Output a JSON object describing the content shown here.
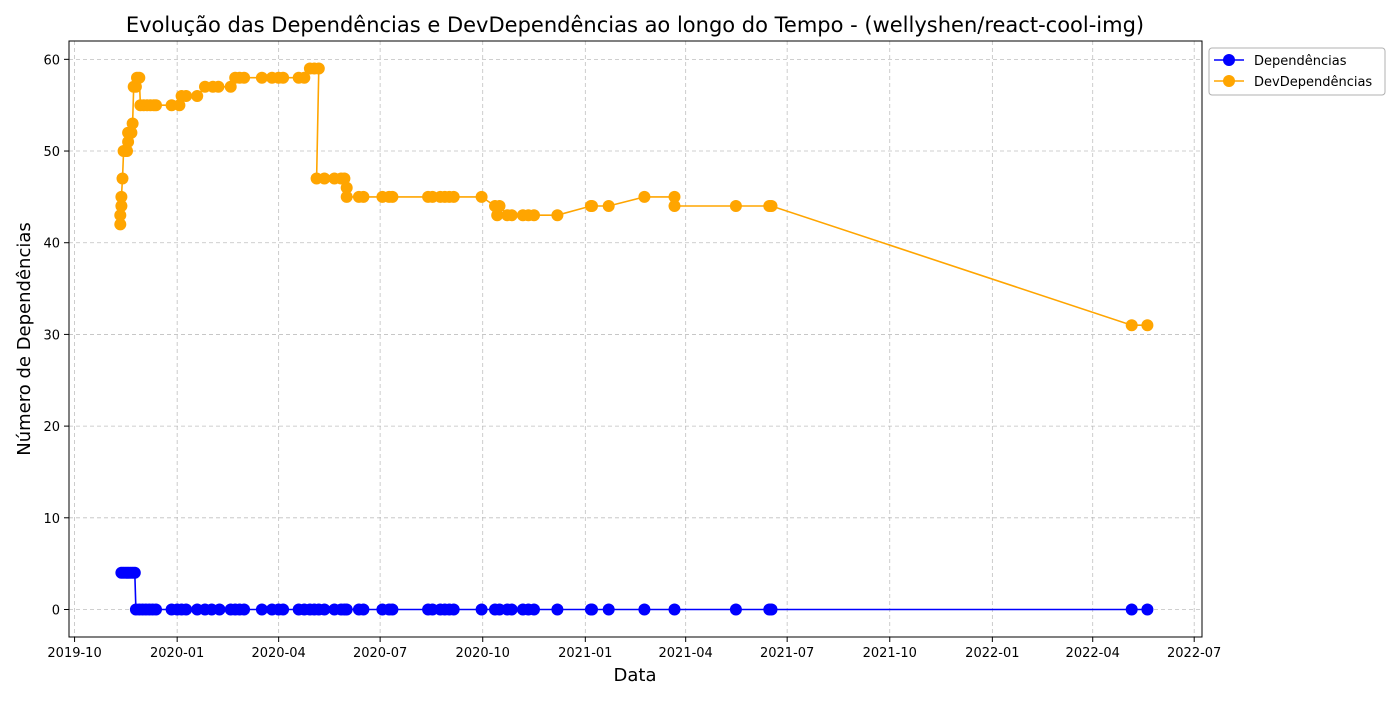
{
  "chart_data": {
    "type": "line",
    "title": "Evolução das Dependências e DevDependências ao longo do Tempo - (wellyshen/react-cool-img)",
    "xlabel": "Data",
    "ylabel": "Número de Dependências",
    "xlim": [
      "2019-09-26",
      "2022-07-08"
    ],
    "ylim": [
      -3,
      62
    ],
    "grid": true,
    "legend_position": "top-right, outside plot",
    "x_ticks": [
      "2019-10-01",
      "2020-01-01",
      "2020-04-01",
      "2020-07-01",
      "2020-10-01",
      "2021-01-01",
      "2021-04-01",
      "2021-07-01",
      "2021-10-01",
      "2022-01-01",
      "2022-04-01",
      "2022-07-01"
    ],
    "x_tick_labels": [
      "2019-10",
      "2020-01",
      "2020-04",
      "2020-07",
      "2020-10",
      "2021-01",
      "2021-04",
      "2021-07",
      "2021-10",
      "2022-01",
      "2022-04",
      "2022-07"
    ],
    "y_ticks": [
      0,
      10,
      20,
      30,
      40,
      50,
      60
    ],
    "y_tick_labels": [
      "0",
      "10",
      "20",
      "30",
      "40",
      "50",
      "60"
    ],
    "series": [
      {
        "name": "Dependências",
        "color": "#0000ff",
        "marker": "circle",
        "points": [
          [
            "2019-11-12",
            4
          ],
          [
            "2019-11-14",
            4
          ],
          [
            "2019-11-16",
            4
          ],
          [
            "2019-11-18",
            4
          ],
          [
            "2019-11-20",
            4
          ],
          [
            "2019-11-22",
            4
          ],
          [
            "2019-11-24",
            4
          ],
          [
            "2019-11-25",
            0
          ],
          [
            "2019-11-28",
            0
          ],
          [
            "2019-12-01",
            0
          ],
          [
            "2019-12-04",
            0
          ],
          [
            "2019-12-07",
            0
          ],
          [
            "2019-12-10",
            0
          ],
          [
            "2019-12-13",
            0
          ],
          [
            "2019-12-27",
            0
          ],
          [
            "2020-01-01",
            0
          ],
          [
            "2020-01-05",
            0
          ],
          [
            "2020-01-09",
            0
          ],
          [
            "2020-01-19",
            0
          ],
          [
            "2020-01-26",
            0
          ],
          [
            "2020-02-01",
            0
          ],
          [
            "2020-02-08",
            0
          ],
          [
            "2020-02-18",
            0
          ],
          [
            "2020-02-22",
            0
          ],
          [
            "2020-02-26",
            0
          ],
          [
            "2020-03-01",
            0
          ],
          [
            "2020-03-17",
            0
          ],
          [
            "2020-03-26",
            0
          ],
          [
            "2020-04-01",
            0
          ],
          [
            "2020-04-05",
            0
          ],
          [
            "2020-04-19",
            0
          ],
          [
            "2020-04-24",
            0
          ],
          [
            "2020-04-29",
            0
          ],
          [
            "2020-05-03",
            0
          ],
          [
            "2020-05-07",
            0
          ],
          [
            "2020-05-12",
            0
          ],
          [
            "2020-05-21",
            0
          ],
          [
            "2020-05-27",
            0
          ],
          [
            "2020-05-30",
            0
          ],
          [
            "2020-06-01",
            0
          ],
          [
            "2020-06-12",
            0
          ],
          [
            "2020-06-16",
            0
          ],
          [
            "2020-07-03",
            0
          ],
          [
            "2020-07-09",
            0
          ],
          [
            "2020-07-12",
            0
          ],
          [
            "2020-08-13",
            0
          ],
          [
            "2020-08-17",
            0
          ],
          [
            "2020-08-24",
            0
          ],
          [
            "2020-08-28",
            0
          ],
          [
            "2020-09-01",
            0
          ],
          [
            "2020-09-05",
            0
          ],
          [
            "2020-09-30",
            0
          ],
          [
            "2020-10-12",
            0
          ],
          [
            "2020-10-16",
            0
          ],
          [
            "2020-10-23",
            0
          ],
          [
            "2020-10-27",
            0
          ],
          [
            "2020-11-06",
            0
          ],
          [
            "2020-11-11",
            0
          ],
          [
            "2020-11-16",
            0
          ],
          [
            "2020-12-07",
            0
          ],
          [
            "2021-01-06",
            0
          ],
          [
            "2021-01-07",
            0
          ],
          [
            "2021-01-22",
            0
          ],
          [
            "2021-02-23",
            0
          ],
          [
            "2021-03-22",
            0
          ],
          [
            "2021-05-16",
            0
          ],
          [
            "2021-06-15",
            0
          ],
          [
            "2021-06-17",
            0
          ],
          [
            "2022-05-06",
            0
          ],
          [
            "2022-05-20",
            0
          ]
        ]
      },
      {
        "name": "DevDependências",
        "color": "#ffa500",
        "marker": "circle",
        "points": [
          [
            "2019-11-11",
            42
          ],
          [
            "2019-11-11",
            43
          ],
          [
            "2019-11-12",
            44
          ],
          [
            "2019-11-12",
            45
          ],
          [
            "2019-11-13",
            47
          ],
          [
            "2019-11-14",
            50
          ],
          [
            "2019-11-16",
            50
          ],
          [
            "2019-11-17",
            50
          ],
          [
            "2019-11-18",
            51
          ],
          [
            "2019-11-18",
            52
          ],
          [
            "2019-11-21",
            52
          ],
          [
            "2019-11-22",
            53
          ],
          [
            "2019-11-23",
            57
          ],
          [
            "2019-11-25",
            57
          ],
          [
            "2019-11-26",
            58
          ],
          [
            "2019-11-28",
            58
          ],
          [
            "2019-11-29",
            55
          ],
          [
            "2019-12-02",
            55
          ],
          [
            "2019-12-05",
            55
          ],
          [
            "2019-12-08",
            55
          ],
          [
            "2019-12-11",
            55
          ],
          [
            "2019-12-13",
            55
          ],
          [
            "2019-12-27",
            55
          ],
          [
            "2020-01-03",
            55
          ],
          [
            "2020-01-05",
            56
          ],
          [
            "2020-01-09",
            56
          ],
          [
            "2020-01-19",
            56
          ],
          [
            "2020-01-26",
            57
          ],
          [
            "2020-02-02",
            57
          ],
          [
            "2020-02-07",
            57
          ],
          [
            "2020-02-18",
            57
          ],
          [
            "2020-02-22",
            58
          ],
          [
            "2020-02-26",
            58
          ],
          [
            "2020-03-01",
            58
          ],
          [
            "2020-03-17",
            58
          ],
          [
            "2020-03-26",
            58
          ],
          [
            "2020-04-01",
            58
          ],
          [
            "2020-04-05",
            58
          ],
          [
            "2020-04-19",
            58
          ],
          [
            "2020-04-24",
            58
          ],
          [
            "2020-04-29",
            59
          ],
          [
            "2020-05-03",
            59
          ],
          [
            "2020-05-07",
            59
          ],
          [
            "2020-05-05",
            47
          ],
          [
            "2020-05-12",
            47
          ],
          [
            "2020-05-21",
            47
          ],
          [
            "2020-05-27",
            47
          ],
          [
            "2020-05-30",
            47
          ],
          [
            "2020-06-01",
            46
          ],
          [
            "2020-06-01",
            45
          ],
          [
            "2020-06-12",
            45
          ],
          [
            "2020-06-16",
            45
          ],
          [
            "2020-07-03",
            45
          ],
          [
            "2020-07-09",
            45
          ],
          [
            "2020-07-12",
            45
          ],
          [
            "2020-08-13",
            45
          ],
          [
            "2020-08-17",
            45
          ],
          [
            "2020-08-24",
            45
          ],
          [
            "2020-08-28",
            45
          ],
          [
            "2020-09-01",
            45
          ],
          [
            "2020-09-05",
            45
          ],
          [
            "2020-09-30",
            45
          ],
          [
            "2020-10-12",
            44
          ],
          [
            "2020-10-14",
            43
          ],
          [
            "2020-10-16",
            44
          ],
          [
            "2020-10-23",
            43
          ],
          [
            "2020-10-27",
            43
          ],
          [
            "2020-11-06",
            43
          ],
          [
            "2020-11-11",
            43
          ],
          [
            "2020-11-16",
            43
          ],
          [
            "2020-12-07",
            43
          ],
          [
            "2021-01-06",
            44
          ],
          [
            "2021-01-07",
            44
          ],
          [
            "2021-01-22",
            44
          ],
          [
            "2021-02-23",
            45
          ],
          [
            "2021-03-22",
            45
          ],
          [
            "2021-03-22",
            44
          ],
          [
            "2021-05-16",
            44
          ],
          [
            "2021-06-15",
            44
          ],
          [
            "2021-06-17",
            44
          ],
          [
            "2022-05-06",
            31
          ],
          [
            "2022-05-20",
            31
          ]
        ]
      }
    ]
  }
}
